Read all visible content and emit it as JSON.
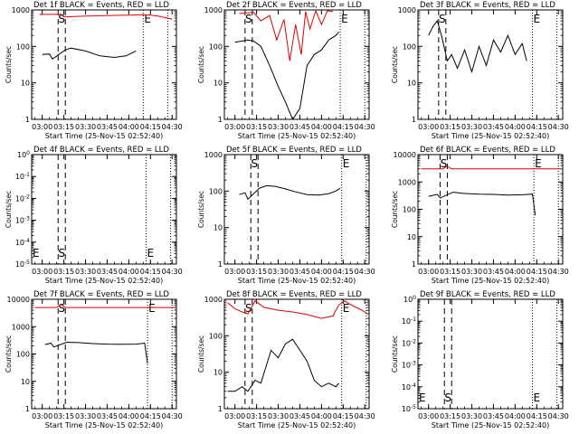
{
  "figure": {
    "xtick_labels": [
      "03:00",
      "03:15",
      "03:30",
      "03:45",
      "04:00",
      "04:15",
      "04:30"
    ],
    "xlabel": "Start Time (25-Nov-15 02:52:40)",
    "ylabel": "Counts/sec",
    "series_colors": {
      "events": "#000000",
      "lld": "#e00000"
    }
  },
  "chart_data": [
    {
      "type": "line",
      "title": "Det 1f BLACK = Events, RED = LLD",
      "xlabel": "Start Time (25-Nov-15 02:52:40)",
      "ylabel": "Counts/sec",
      "xlim": [
        "02:52:40",
        "04:33:00"
      ],
      "ylim": [
        1,
        1000
      ],
      "yscale": "log",
      "ytick_labels": [
        "1",
        "10",
        "100",
        "1000"
      ],
      "markers": [
        {
          "label": "S",
          "time": "03:13"
        },
        {
          "label": "E",
          "time": "04:10"
        }
      ],
      "series": [
        {
          "color": "#e00000",
          "x": [
            "02:58",
            "03:13",
            "03:15",
            "03:30",
            "03:45",
            "04:00",
            "04:10",
            "04:15",
            "04:20",
            "04:25",
            "04:30"
          ],
          "y": [
            750,
            760,
            640,
            680,
            700,
            720,
            740,
            720,
            680,
            620,
            560
          ]
        },
        {
          "color": "#000000",
          "x": [
            "03:00",
            "03:05",
            "03:07",
            "03:16",
            "03:20",
            "03:30",
            "03:40",
            "03:50",
            "03:58",
            "04:05"
          ],
          "y": [
            60,
            62,
            45,
            80,
            90,
            75,
            55,
            50,
            55,
            75
          ]
        }
      ]
    },
    {
      "type": "line",
      "title": "Det 2f BLACK = Events, RED = LLD",
      "xlabel": "Start Time (25-Nov-15 02:52:40)",
      "ylabel": "Counts/sec",
      "xlim": [
        "02:52:40",
        "04:33:00"
      ],
      "ylim": [
        1,
        1000
      ],
      "yscale": "log",
      "ytick_labels": [
        "1",
        "10",
        "100",
        "1000"
      ],
      "markers": [
        {
          "label": "S",
          "time": "03:09"
        },
        {
          "label": "E",
          "time": "04:13"
        }
      ],
      "series": [
        {
          "color": "#e00000",
          "x": [
            "03:03",
            "03:13",
            "03:18",
            "03:24",
            "03:29",
            "03:34",
            "03:38",
            "03:42",
            "03:46",
            "03:49",
            "03:52",
            "03:56",
            "04:00",
            "04:04",
            "04:08"
          ],
          "y": [
            800,
            850,
            500,
            700,
            150,
            550,
            40,
            400,
            60,
            900,
            300,
            950,
            400,
            950,
            900
          ]
        },
        {
          "color": "#000000",
          "x": [
            "03:00",
            "03:09",
            "03:13",
            "03:18",
            "03:24",
            "03:30",
            "03:35",
            "03:40",
            "03:45",
            "03:50",
            "03:55",
            "04:00",
            "04:05",
            "04:10",
            "04:12"
          ],
          "y": [
            130,
            150,
            140,
            100,
            30,
            8,
            3,
            1,
            2,
            30,
            60,
            80,
            150,
            200,
            250
          ]
        }
      ]
    },
    {
      "type": "line",
      "title": "Det 3f BLACK = Events, RED = LLD",
      "xlabel": "Start Time (25-Nov-15 02:52:40)",
      "ylabel": "Counts/sec",
      "xlim": [
        "02:52:40",
        "04:33:00"
      ],
      "ylim": [
        1,
        1000
      ],
      "yscale": "log",
      "ytick_labels": [
        "1",
        "10",
        "100",
        "1000"
      ],
      "markers": [
        {
          "label": "S",
          "time": "03:09"
        },
        {
          "label": "E",
          "time": "04:12"
        }
      ],
      "series": [
        {
          "color": "#000000",
          "x": [
            "03:00",
            "03:03",
            "03:06",
            "03:09",
            "03:13",
            "03:16",
            "03:20",
            "03:25",
            "03:30",
            "03:35",
            "03:40",
            "03:45",
            "03:50",
            "03:55",
            "04:00",
            "04:05",
            "04:08"
          ],
          "y": [
            200,
            350,
            500,
            200,
            40,
            60,
            25,
            80,
            20,
            100,
            30,
            150,
            70,
            200,
            60,
            120,
            40
          ]
        }
      ]
    },
    {
      "type": "line",
      "title": "Det 4f BLACK = Events, RED = LLD",
      "xlabel": "Start Time (25-Nov-15 02:52:40)",
      "ylabel": "Counts/sec",
      "xlim": [
        "02:52:40",
        "04:33:00"
      ],
      "ylim": [
        "10^0",
        "10^-5"
      ],
      "yscale": "log",
      "ytick_labels": [
        "10^-5",
        "10^-4",
        "10^-3",
        "10^-2",
        "10^-1",
        "10^0"
      ],
      "markers": [
        {
          "label": "S",
          "time": "03:13"
        },
        {
          "label": "E",
          "time": "04:12"
        }
      ],
      "series": []
    },
    {
      "type": "line",
      "title": "Det 5f BLACK = Events, RED = LLD",
      "xlabel": "Start Time (25-Nov-15 02:52:40)",
      "ylabel": "Counts/sec",
      "xlim": [
        "02:52:40",
        "04:33:00"
      ],
      "ylim": [
        1,
        1000
      ],
      "yscale": "log",
      "ytick_labels": [
        "1",
        "10",
        "100",
        "1000"
      ],
      "markers": [
        {
          "label": "S",
          "time": "03:13"
        },
        {
          "label": "E",
          "time": "04:14"
        }
      ],
      "series": [
        {
          "color": "#000000",
          "x": [
            "03:03",
            "03:07",
            "03:09",
            "03:17",
            "03:22",
            "03:28",
            "03:35",
            "03:42",
            "03:50",
            "03:58",
            "04:05",
            "04:10",
            "04:13"
          ],
          "y": [
            80,
            90,
            60,
            120,
            140,
            135,
            115,
            95,
            80,
            78,
            85,
            100,
            120
          ]
        }
      ]
    },
    {
      "type": "line",
      "title": "Det 6f BLACK = Events, RED = LLD",
      "xlabel": "Start Time (25-Nov-15 02:52:40)",
      "ylabel": "Counts/sec",
      "xlim": [
        "02:52:40",
        "04:33:00"
      ],
      "ylim": [
        1,
        10000
      ],
      "yscale": "log",
      "ytick_labels": [
        "1",
        "10",
        "100",
        "1000",
        "10000"
      ],
      "markers": [
        {
          "label": "S",
          "time": "03:10"
        },
        {
          "label": "E",
          "time": "04:13"
        }
      ],
      "series": [
        {
          "color": "#e00000",
          "x": [
            "02:55",
            "03:10",
            "03:13",
            "03:16",
            "03:20",
            "03:35",
            "03:50",
            "04:05",
            "04:15",
            "04:32"
          ],
          "y": [
            3000,
            3000,
            3800,
            3000,
            3000,
            3000,
            3000,
            3000,
            3000,
            3000
          ]
        },
        {
          "color": "#000000",
          "x": [
            "03:00",
            "03:06",
            "03:08",
            "03:17",
            "03:25",
            "03:35",
            "03:45",
            "03:55",
            "04:05",
            "04:12",
            "04:14"
          ],
          "y": [
            300,
            350,
            260,
            420,
            380,
            360,
            350,
            330,
            340,
            360,
            60
          ]
        }
      ]
    },
    {
      "type": "line",
      "title": "Det 7f BLACK = Events, RED = LLD",
      "xlabel": "Start Time (25-Nov-15 02:52:40)",
      "ylabel": "Counts/sec",
      "xlim": [
        "02:52:40",
        "04:33:00"
      ],
      "ylim": [
        1,
        10000
      ],
      "yscale": "log",
      "ytick_labels": [
        "1",
        "10",
        "100",
        "1000",
        "10000"
      ],
      "markers": [
        {
          "label": "S",
          "time": "03:13"
        },
        {
          "label": "E",
          "time": "04:13"
        }
      ],
      "series": [
        {
          "color": "#e00000",
          "x": [
            "02:55",
            "03:10",
            "03:13",
            "03:16",
            "03:20",
            "03:35",
            "03:50",
            "04:05",
            "04:15",
            "04:32"
          ],
          "y": [
            5000,
            5000,
            6500,
            5000,
            5000,
            5000,
            5000,
            5000,
            5000,
            5000
          ]
        },
        {
          "color": "#000000",
          "x": [
            "03:02",
            "03:06",
            "03:08",
            "03:17",
            "03:25",
            "03:35",
            "03:45",
            "03:55",
            "04:05",
            "04:11",
            "04:13"
          ],
          "y": [
            220,
            250,
            180,
            270,
            260,
            240,
            230,
            225,
            230,
            250,
            45
          ]
        }
      ]
    },
    {
      "type": "line",
      "title": "Det 8f BLACK = Events, RED = LLD",
      "xlabel": "Start Time (25-Nov-15 02:52:40)",
      "ylabel": "Counts/sec",
      "xlim": [
        "02:52:40",
        "04:33:00"
      ],
      "ylim": [
        1,
        1000
      ],
      "yscale": "log",
      "ytick_labels": [
        "1",
        "10",
        "100",
        "1000"
      ],
      "markers": [
        {
          "label": "S",
          "time": "03:09"
        },
        {
          "label": "E",
          "time": "04:14"
        }
      ],
      "series": [
        {
          "color": "#e00000",
          "x": [
            "02:55",
            "03:00",
            "03:05",
            "03:09",
            "03:14",
            "03:20",
            "03:30",
            "03:40",
            "03:50",
            "04:00",
            "04:08",
            "04:12",
            "04:16",
            "04:22",
            "04:28",
            "04:32"
          ],
          "y": [
            800,
            550,
            450,
            400,
            900,
            600,
            500,
            450,
            380,
            300,
            350,
            700,
            900,
            650,
            500,
            400
          ]
        },
        {
          "color": "#000000",
          "x": [
            "02:55",
            "03:00",
            "03:05",
            "03:09",
            "03:14",
            "03:18",
            "03:25",
            "03:30",
            "03:35",
            "03:40",
            "03:45",
            "03:50",
            "03:55",
            "04:00",
            "04:05",
            "04:10",
            "04:12"
          ],
          "y": [
            3,
            3,
            4,
            3,
            6,
            5,
            40,
            25,
            60,
            80,
            40,
            20,
            6,
            4,
            5,
            4,
            5
          ]
        }
      ]
    },
    {
      "type": "line",
      "title": "Det 9f BLACK = Events, RED = LLD",
      "xlabel": "Start Time (25-Nov-15 02:52:40)",
      "ylabel": "Counts/sec",
      "xlim": [
        "02:52:40",
        "04:33:00"
      ],
      "ylim": [
        "10^0",
        "10^-5"
      ],
      "yscale": "log",
      "ytick_labels": [
        "10^-5",
        "10^-4",
        "10^-3",
        "10^-2",
        "10^-1",
        "10^0"
      ],
      "markers": [
        {
          "label": "S",
          "time": "03:13"
        },
        {
          "label": "E",
          "time": "04:12"
        }
      ],
      "series": []
    }
  ]
}
